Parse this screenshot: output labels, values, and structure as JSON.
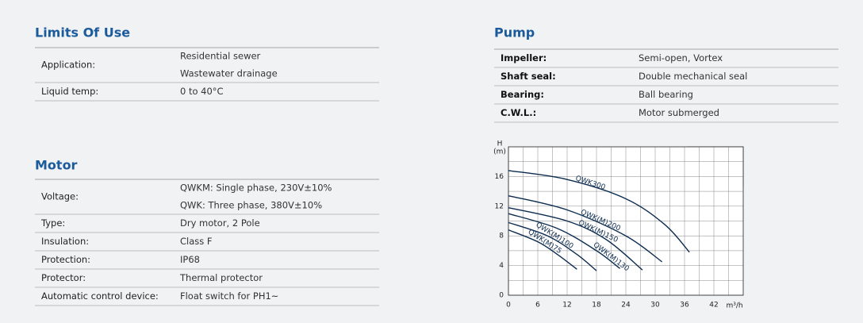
{
  "limits_of_use": {
    "title": "Limits Of Use",
    "rows": [
      {
        "label": "Application:",
        "values": [
          "Residential sewer",
          "Wastewater drainage"
        ]
      },
      {
        "label": "Liquid temp:",
        "values": [
          "0 to 40°C"
        ]
      }
    ]
  },
  "motor": {
    "title": "Motor",
    "rows": [
      {
        "label": "Voltage:",
        "values": [
          "QWKM: Single phase, 230V±10%",
          "QWK: Three phase, 380V±10%"
        ]
      },
      {
        "label": "Type:",
        "values": [
          "Dry motor, 2 Pole"
        ]
      },
      {
        "label": "Insulation:",
        "values": [
          "Class F"
        ]
      },
      {
        "label": "Protection:",
        "values": [
          "IP68"
        ]
      },
      {
        "label": "Protector:",
        "values": [
          "Thermal protector"
        ]
      },
      {
        "label": "Automatic control device:",
        "values": [
          "Float switch for PH1~"
        ]
      }
    ]
  },
  "pump": {
    "title": "Pump",
    "rows": [
      {
        "label": "Impeller:",
        "values": [
          "Semi-open, Vortex"
        ]
      },
      {
        "label": "Shaft seal:",
        "values": [
          "Double mechanical seal"
        ]
      },
      {
        "label": "Bearing:",
        "values": [
          "Ball bearing"
        ]
      },
      {
        "label": "C.W.L.:",
        "values": [
          "Motor submerged"
        ]
      }
    ]
  },
  "chart_data": {
    "type": "line",
    "y_label": "H",
    "y_unit": "(m)",
    "x_label": "m³/h",
    "xlim": [
      0,
      48
    ],
    "xticks": [
      0,
      6,
      12,
      18,
      24,
      30,
      36,
      42
    ],
    "ylim": [
      0,
      20
    ],
    "yticks": [
      0,
      4,
      8,
      12,
      16
    ],
    "grid": true,
    "series": [
      {
        "name": "QWK300",
        "color": "#0d2d50",
        "x": [
          0,
          12,
          24,
          32,
          37
        ],
        "values": [
          16.8,
          15.6,
          13,
          9.5,
          5.8
        ]
      },
      {
        "name": "QWK(M)200",
        "color": "#0d2d50",
        "x": [
          0,
          12,
          24,
          31.4
        ],
        "values": [
          13.4,
          11.5,
          8,
          4.5
        ]
      },
      {
        "name": "QWK(M)150",
        "color": "#0d2d50",
        "x": [
          0,
          12,
          20,
          27.4
        ],
        "values": [
          11.8,
          10,
          7.5,
          3.4
        ]
      },
      {
        "name": "QWK(M)130",
        "color": "#0d2d50",
        "x": [
          0,
          10,
          18,
          22.8
        ],
        "values": [
          11,
          9,
          6,
          3.6
        ]
      },
      {
        "name": "QWK(M)100",
        "color": "#0d2d50",
        "x": [
          0,
          8,
          14,
          18
        ],
        "values": [
          9.8,
          8,
          5.5,
          3.3
        ]
      },
      {
        "name": "QWK(M)75",
        "color": "#0d2d50",
        "x": [
          0,
          6,
          10,
          14
        ],
        "values": [
          8.8,
          7.2,
          5.5,
          3.5
        ]
      }
    ]
  }
}
